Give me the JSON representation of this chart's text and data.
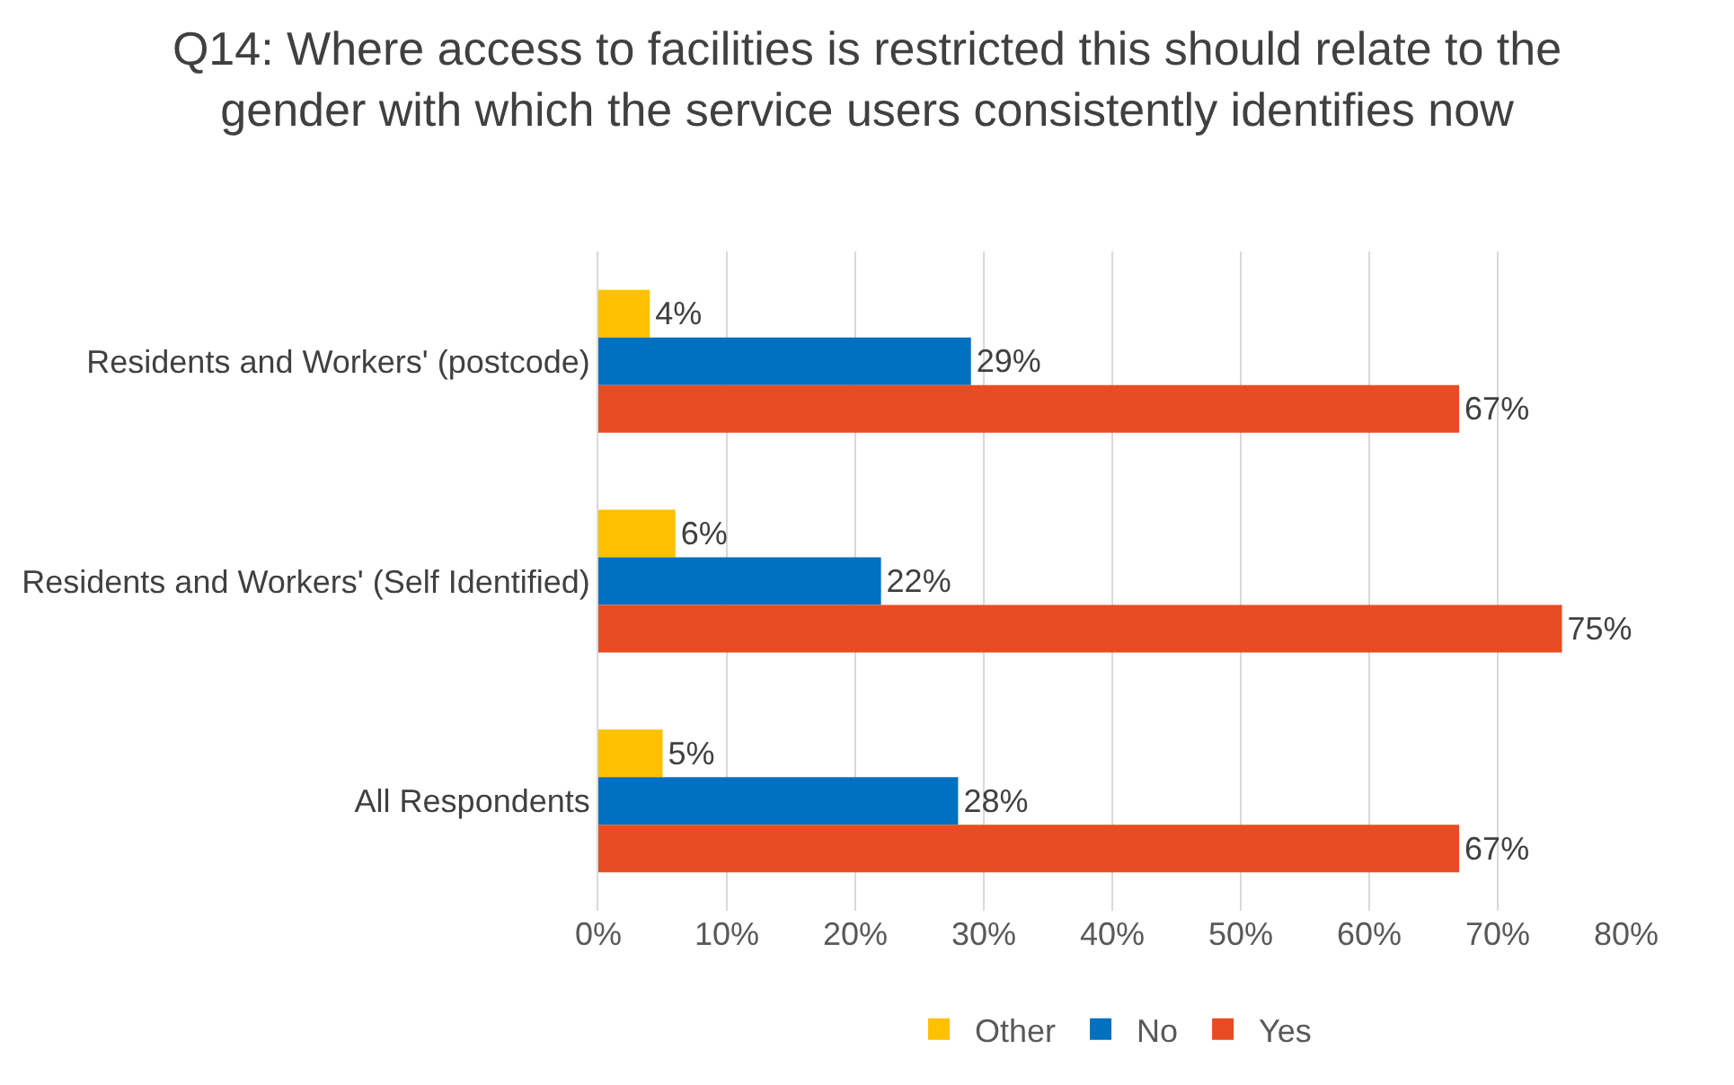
{
  "chart_data": {
    "type": "bar",
    "orientation": "horizontal",
    "title": "Q14: Where access to facilities is restricted this should relate to the gender with which the service users consistently identifies now",
    "categories": [
      "Residents and Workers' (postcode)",
      "Residents and Workers' (Self Identified)",
      "All Respondents"
    ],
    "series": [
      {
        "name": "Other",
        "color": "#ffc000",
        "values": [
          4,
          6,
          5
        ],
        "value_labels": [
          "4%",
          "6%",
          "5%"
        ]
      },
      {
        "name": "No",
        "color": "#0070c0",
        "values": [
          29,
          22,
          28
        ],
        "value_labels": [
          "29%",
          "22%",
          "28%"
        ]
      },
      {
        "name": "Yes",
        "color": "#e84c22",
        "values": [
          67,
          75,
          67
        ],
        "value_labels": [
          "67%",
          "75%",
          "67%"
        ]
      }
    ],
    "xlim": [
      0,
      80
    ],
    "xticks": [
      {
        "value": 0,
        "label": "0%"
      },
      {
        "value": 10,
        "label": "10%"
      },
      {
        "value": 20,
        "label": "20%"
      },
      {
        "value": 30,
        "label": "30%"
      },
      {
        "value": 40,
        "label": "40%"
      },
      {
        "value": 50,
        "label": "50%"
      },
      {
        "value": 60,
        "label": "60%"
      },
      {
        "value": 70,
        "label": "70%"
      },
      {
        "value": 80,
        "label": "80%"
      }
    ],
    "grid": "x",
    "legend": "bottom"
  }
}
